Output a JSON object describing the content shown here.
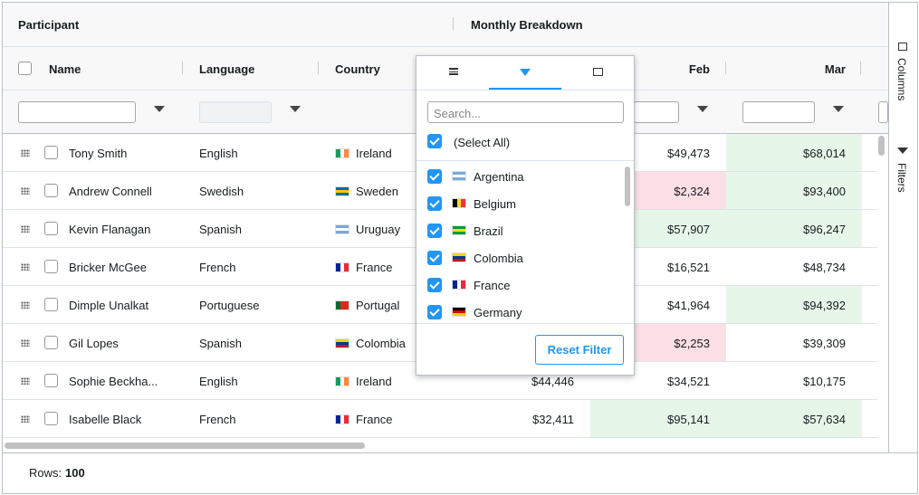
{
  "header": {
    "group_participant": "Participant",
    "group_monthly": "Monthly Breakdown",
    "name": "Name",
    "language": "Language",
    "country": "Country",
    "feb": "Feb",
    "mar": "Mar"
  },
  "rows": [
    {
      "name": "Tony Smith",
      "language": "English",
      "country": "Ireland",
      "flag": [
        "#169b62",
        "#ffffff",
        "#ff883e"
      ],
      "flag_dir": "v",
      "feb": "$49,473",
      "mar": "$68,014",
      "mar_bg": "#e6f7e9"
    },
    {
      "name": "Andrew Connell",
      "language": "Swedish",
      "country": "Sweden",
      "flag": [
        "#006aa7",
        "#fecc00",
        "#006aa7"
      ],
      "flag_dir": "h",
      "feb": "$2,324",
      "feb_bg": "#fcdfe5",
      "mar": "$93,400",
      "mar_bg": "#e6f7e9"
    },
    {
      "name": "Kevin Flanagan",
      "language": "Spanish",
      "country": "Uruguay",
      "flag": [
        "#7aa5d8",
        "#ffffff",
        "#7aa5d8"
      ],
      "flag_dir": "h",
      "feb": "$57,907",
      "feb_bg": "#e6f7e9",
      "mar": "$96,247",
      "mar_bg": "#e6f7e9"
    },
    {
      "name": "Bricker McGee",
      "language": "French",
      "country": "France",
      "flag": [
        "#002395",
        "#ffffff",
        "#ed2939"
      ],
      "flag_dir": "v",
      "feb": "$16,521",
      "mar": "$48,734"
    },
    {
      "name": "Dimple Unalkat",
      "language": "Portuguese",
      "country": "Portugal",
      "flag": [
        "#046a38",
        "#da291c",
        "#da291c"
      ],
      "flag_dir": "v",
      "feb": "$41,964",
      "mar": "$94,392",
      "mar_bg": "#e6f7e9"
    },
    {
      "name": "Gil Lopes",
      "language": "Spanish",
      "country": "Colombia",
      "flag": [
        "#fcd116",
        "#003893",
        "#ce1126"
      ],
      "flag_dir": "h",
      "feb": "$2,253",
      "feb_bg": "#fcdfe5",
      "mar": "$39,309"
    },
    {
      "name": "Sophie Beckha...",
      "language": "English",
      "country": "Ireland",
      "flag": [
        "#169b62",
        "#ffffff",
        "#ff883e"
      ],
      "flag_dir": "v",
      "jan": "$44,446",
      "feb": "$34,521",
      "mar": "$10,175"
    },
    {
      "name": "Isabelle Black",
      "language": "French",
      "country": "France",
      "flag": [
        "#002395",
        "#ffffff",
        "#ed2939"
      ],
      "flag_dir": "v",
      "jan": "$32,411",
      "feb": "$95,141",
      "feb_bg": "#e6f7e9",
      "mar": "$57,634",
      "mar_bg": "#e6f7e9"
    }
  ],
  "popup": {
    "search_placeholder": "Search...",
    "select_all": "(Select All)",
    "reset": "Reset Filter",
    "items": [
      {
        "label": "Argentina",
        "flag": [
          "#74acdf",
          "#ffffff",
          "#74acdf"
        ],
        "flag_dir": "h"
      },
      {
        "label": "Belgium",
        "flag": [
          "#000000",
          "#fdda24",
          "#ef3340"
        ],
        "flag_dir": "v"
      },
      {
        "label": "Brazil",
        "flag": [
          "#009c3b",
          "#ffdf00",
          "#009c3b"
        ],
        "flag_dir": "h"
      },
      {
        "label": "Colombia",
        "flag": [
          "#fcd116",
          "#003893",
          "#ce1126"
        ],
        "flag_dir": "h"
      },
      {
        "label": "France",
        "flag": [
          "#002395",
          "#ffffff",
          "#ed2939"
        ],
        "flag_dir": "v"
      },
      {
        "label": "Germany",
        "flag": [
          "#000000",
          "#dd0000",
          "#ffce00"
        ],
        "flag_dir": "h"
      }
    ]
  },
  "side": {
    "columns": "Columns",
    "filters": "Filters"
  },
  "footer": {
    "rows_label": "Rows:",
    "rows_count": "100"
  }
}
